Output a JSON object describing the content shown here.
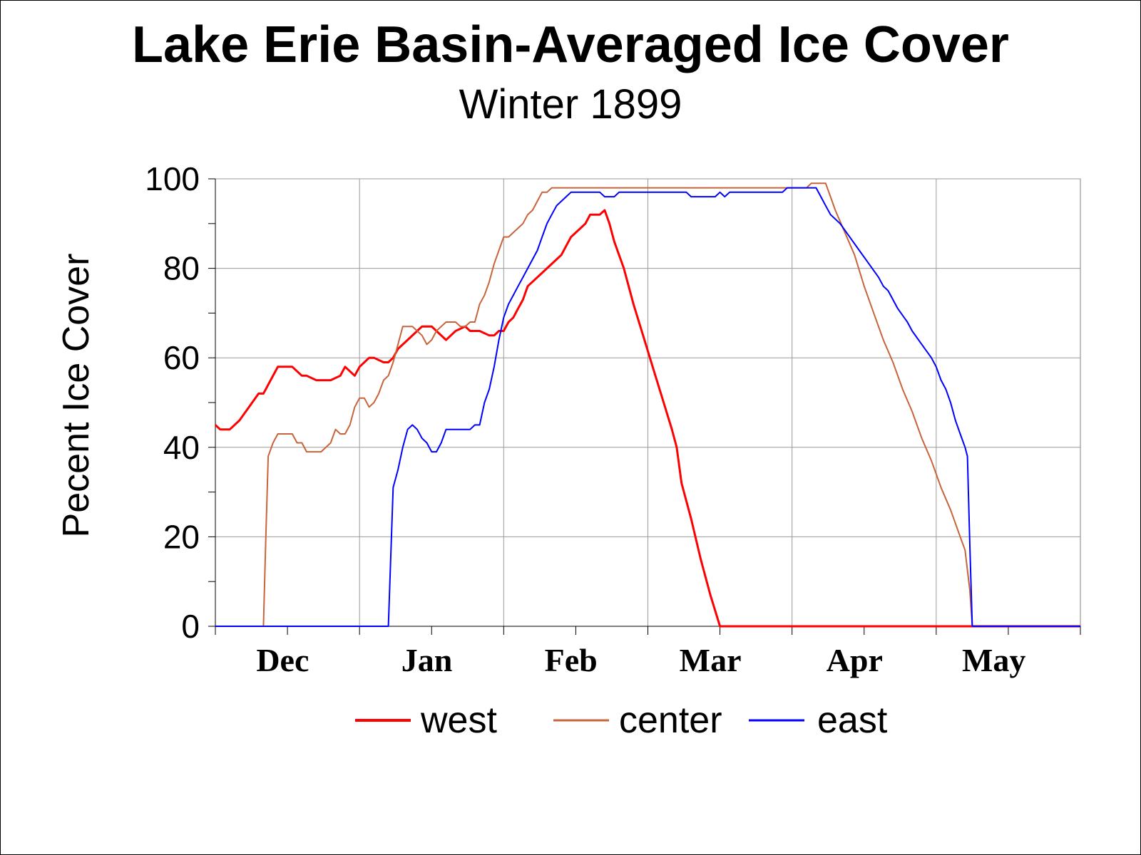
{
  "title": "Lake Erie Basin-Averaged Ice Cover",
  "subtitle": "Winter 1899",
  "colors": {
    "west": "#ff0000",
    "center": "#c8643c",
    "east": "#0000ff",
    "grid": "#9a9a9a"
  },
  "chart_data": {
    "type": "line",
    "title": "Lake Erie Basin-Averaged Ice Cover",
    "subtitle": "Winter 1899",
    "xlabel": "",
    "ylabel": "Pecent Ice Cover",
    "x_unit": "days from start of record",
    "xlim": [
      0,
      180
    ],
    "ylim": [
      0,
      100
    ],
    "yticks": [
      "0",
      "20",
      "40",
      "60",
      "80",
      "100"
    ],
    "ytick_values": [
      0,
      20,
      40,
      60,
      80,
      100
    ],
    "month_labels": [
      {
        "label": "Dec",
        "day": 14
      },
      {
        "label": "Jan",
        "day": 44
      },
      {
        "label": "Feb",
        "day": 74
      },
      {
        "label": "Mar",
        "day": 103
      },
      {
        "label": "Apr",
        "day": 133
      },
      {
        "label": "May",
        "day": 162
      }
    ],
    "grid": true,
    "legend_position": "bottom",
    "series": [
      {
        "name": "west",
        "color": "#ff0000",
        "width": 3,
        "points": [
          [
            0,
            45
          ],
          [
            1,
            44
          ],
          [
            3,
            44
          ],
          [
            5,
            46
          ],
          [
            7,
            49
          ],
          [
            9,
            52
          ],
          [
            10,
            52
          ],
          [
            11,
            54
          ],
          [
            13,
            58
          ],
          [
            16,
            58
          ],
          [
            18,
            56
          ],
          [
            19,
            56
          ],
          [
            21,
            55
          ],
          [
            24,
            55
          ],
          [
            26,
            56
          ],
          [
            27,
            58
          ],
          [
            29,
            56
          ],
          [
            30,
            58
          ],
          [
            32,
            60
          ],
          [
            33,
            60
          ],
          [
            35,
            59
          ],
          [
            36,
            59
          ],
          [
            37,
            60
          ],
          [
            38,
            62
          ],
          [
            40,
            64
          ],
          [
            42,
            66
          ],
          [
            43,
            67
          ],
          [
            45,
            67
          ],
          [
            46,
            66
          ],
          [
            48,
            64
          ],
          [
            49,
            65
          ],
          [
            50,
            66
          ],
          [
            52,
            67
          ],
          [
            53,
            66
          ],
          [
            55,
            66
          ],
          [
            57,
            65
          ],
          [
            58,
            65
          ],
          [
            59,
            66
          ],
          [
            60,
            66
          ],
          [
            61,
            68
          ],
          [
            62,
            69
          ],
          [
            63,
            71
          ],
          [
            64,
            73
          ],
          [
            65,
            76
          ],
          [
            67,
            78
          ],
          [
            69,
            80
          ],
          [
            71,
            82
          ],
          [
            72,
            83
          ],
          [
            73,
            85
          ],
          [
            74,
            87
          ],
          [
            76,
            89
          ],
          [
            77,
            90
          ],
          [
            78,
            92
          ],
          [
            79,
            92
          ],
          [
            80,
            92
          ],
          [
            81,
            93
          ],
          [
            82,
            90
          ],
          [
            83,
            86
          ],
          [
            85,
            80
          ],
          [
            87,
            72
          ],
          [
            89,
            65
          ],
          [
            91,
            58
          ],
          [
            93,
            51
          ],
          [
            95,
            44
          ],
          [
            96,
            40
          ],
          [
            97,
            32
          ],
          [
            99,
            24
          ],
          [
            101,
            15
          ],
          [
            103,
            7
          ],
          [
            105,
            0
          ],
          [
            180,
            0
          ]
        ]
      },
      {
        "name": "center",
        "color": "#c8643c",
        "width": 2,
        "points": [
          [
            0,
            0
          ],
          [
            10,
            0
          ],
          [
            10.5,
            20
          ],
          [
            11,
            38
          ],
          [
            12,
            41
          ],
          [
            13,
            43
          ],
          [
            16,
            43
          ],
          [
            17,
            41
          ],
          [
            18,
            41
          ],
          [
            19,
            39
          ],
          [
            22,
            39
          ],
          [
            24,
            41
          ],
          [
            25,
            44
          ],
          [
            26,
            43
          ],
          [
            27,
            43
          ],
          [
            28,
            45
          ],
          [
            29,
            49
          ],
          [
            30,
            51
          ],
          [
            31,
            51
          ],
          [
            32,
            49
          ],
          [
            33,
            50
          ],
          [
            34,
            52
          ],
          [
            35,
            55
          ],
          [
            36,
            56
          ],
          [
            37,
            59
          ],
          [
            38,
            63
          ],
          [
            39,
            67
          ],
          [
            41,
            67
          ],
          [
            42,
            66
          ],
          [
            43,
            65
          ],
          [
            44,
            63
          ],
          [
            45,
            64
          ],
          [
            46,
            66
          ],
          [
            47,
            67
          ],
          [
            48,
            68
          ],
          [
            50,
            68
          ],
          [
            51,
            67
          ],
          [
            52,
            67
          ],
          [
            53,
            68
          ],
          [
            54,
            68
          ],
          [
            55,
            72
          ],
          [
            56,
            74
          ],
          [
            57,
            77
          ],
          [
            58,
            81
          ],
          [
            59,
            84
          ],
          [
            60,
            87
          ],
          [
            61,
            87
          ],
          [
            62,
            88
          ],
          [
            63,
            89
          ],
          [
            64,
            90
          ],
          [
            65,
            92
          ],
          [
            66,
            93
          ],
          [
            67,
            95
          ],
          [
            68,
            97
          ],
          [
            69,
            97
          ],
          [
            70,
            98
          ],
          [
            123,
            98
          ],
          [
            124,
            99
          ],
          [
            127,
            99
          ],
          [
            128,
            96
          ],
          [
            129,
            93
          ],
          [
            131,
            88
          ],
          [
            133,
            83
          ],
          [
            135,
            76
          ],
          [
            137,
            70
          ],
          [
            139,
            64
          ],
          [
            141,
            59
          ],
          [
            143,
            53
          ],
          [
            145,
            48
          ],
          [
            147,
            42
          ],
          [
            149,
            37
          ],
          [
            151,
            31
          ],
          [
            153,
            26
          ],
          [
            155,
            20
          ],
          [
            156,
            17
          ],
          [
            157,
            8
          ],
          [
            157.5,
            0
          ],
          [
            180,
            0
          ]
        ]
      },
      {
        "name": "east",
        "color": "#0000ff",
        "width": 2,
        "points": [
          [
            0,
            0
          ],
          [
            36,
            0
          ],
          [
            37,
            31
          ],
          [
            38,
            35
          ],
          [
            39,
            40
          ],
          [
            40,
            44
          ],
          [
            41,
            45
          ],
          [
            42,
            44
          ],
          [
            43,
            42
          ],
          [
            44,
            41
          ],
          [
            45,
            39
          ],
          [
            46,
            39
          ],
          [
            47,
            41
          ],
          [
            48,
            44
          ],
          [
            53,
            44
          ],
          [
            54,
            45
          ],
          [
            55,
            45
          ],
          [
            56,
            50
          ],
          [
            57,
            53
          ],
          [
            58,
            58
          ],
          [
            59,
            64
          ],
          [
            60,
            69
          ],
          [
            61,
            72
          ],
          [
            62,
            74
          ],
          [
            63,
            76
          ],
          [
            64,
            78
          ],
          [
            65,
            80
          ],
          [
            66,
            82
          ],
          [
            67,
            84
          ],
          [
            68,
            87
          ],
          [
            69,
            90
          ],
          [
            70,
            92
          ],
          [
            71,
            94
          ],
          [
            72,
            95
          ],
          [
            73,
            96
          ],
          [
            74,
            97
          ],
          [
            80,
            97
          ],
          [
            81,
            96
          ],
          [
            83,
            96
          ],
          [
            84,
            97
          ],
          [
            96,
            97
          ],
          [
            98,
            97
          ],
          [
            99,
            96
          ],
          [
            104,
            96
          ],
          [
            105,
            97
          ],
          [
            106,
            96
          ],
          [
            107,
            97
          ],
          [
            118,
            97
          ],
          [
            119,
            98
          ],
          [
            125,
            98
          ],
          [
            126,
            96
          ],
          [
            127,
            94
          ],
          [
            128,
            92
          ],
          [
            130,
            90
          ],
          [
            132,
            87
          ],
          [
            134,
            84
          ],
          [
            136,
            81
          ],
          [
            138,
            78
          ],
          [
            139,
            76
          ],
          [
            140,
            75
          ],
          [
            141,
            73
          ],
          [
            142,
            71
          ],
          [
            144,
            68
          ],
          [
            145,
            66
          ],
          [
            147,
            63
          ],
          [
            149,
            60
          ],
          [
            150,
            58
          ],
          [
            151,
            55
          ],
          [
            152,
            53
          ],
          [
            153,
            50
          ],
          [
            154,
            46
          ],
          [
            155,
            43
          ],
          [
            156,
            40
          ],
          [
            156.5,
            38
          ],
          [
            157,
            18
          ],
          [
            157.5,
            0
          ],
          [
            180,
            0
          ]
        ]
      }
    ]
  }
}
